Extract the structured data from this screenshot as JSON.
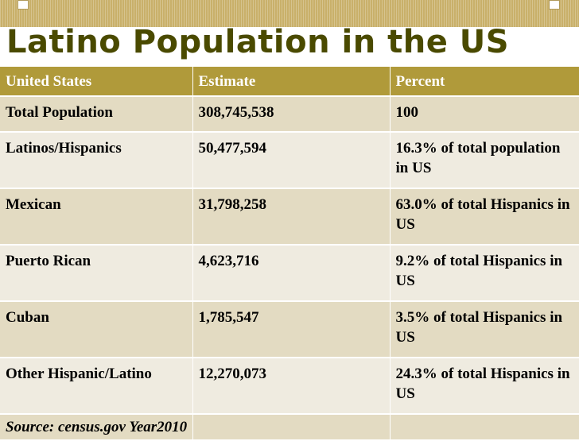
{
  "title": "Latino Population in the US",
  "table": {
    "headers": [
      "United States",
      "Estimate",
      "Percent"
    ],
    "rows": [
      {
        "group": "Total Population",
        "estimate": "308,745,538",
        "percent": "100"
      },
      {
        "group": "Latinos/Hispanics",
        "estimate": "50,477,594",
        "percent": "16.3% of total population in US"
      },
      {
        "group": "Mexican",
        "estimate": " 31,798,258",
        "percent": "63.0% of total Hispanics in US"
      },
      {
        "group": "Puerto Rican",
        "estimate": " 4,623,716",
        "percent": "9.2% of total Hispanics in US"
      },
      {
        "group": "Cuban",
        "estimate": " 1,785,547",
        "percent": "3.5% of total Hispanics in US"
      },
      {
        "group": "Other Hispanic/Latino",
        "estimate": "12,270,073",
        "percent": "24.3% of total Hispanics in US"
      }
    ],
    "source": "Source: census.gov Year2010"
  },
  "colors": {
    "title": "#4a4a00",
    "header_bg": "#b09a3a",
    "row_odd": "#e3dbc2",
    "row_even": "#efebe0",
    "top_bar": "#c9b06a"
  }
}
